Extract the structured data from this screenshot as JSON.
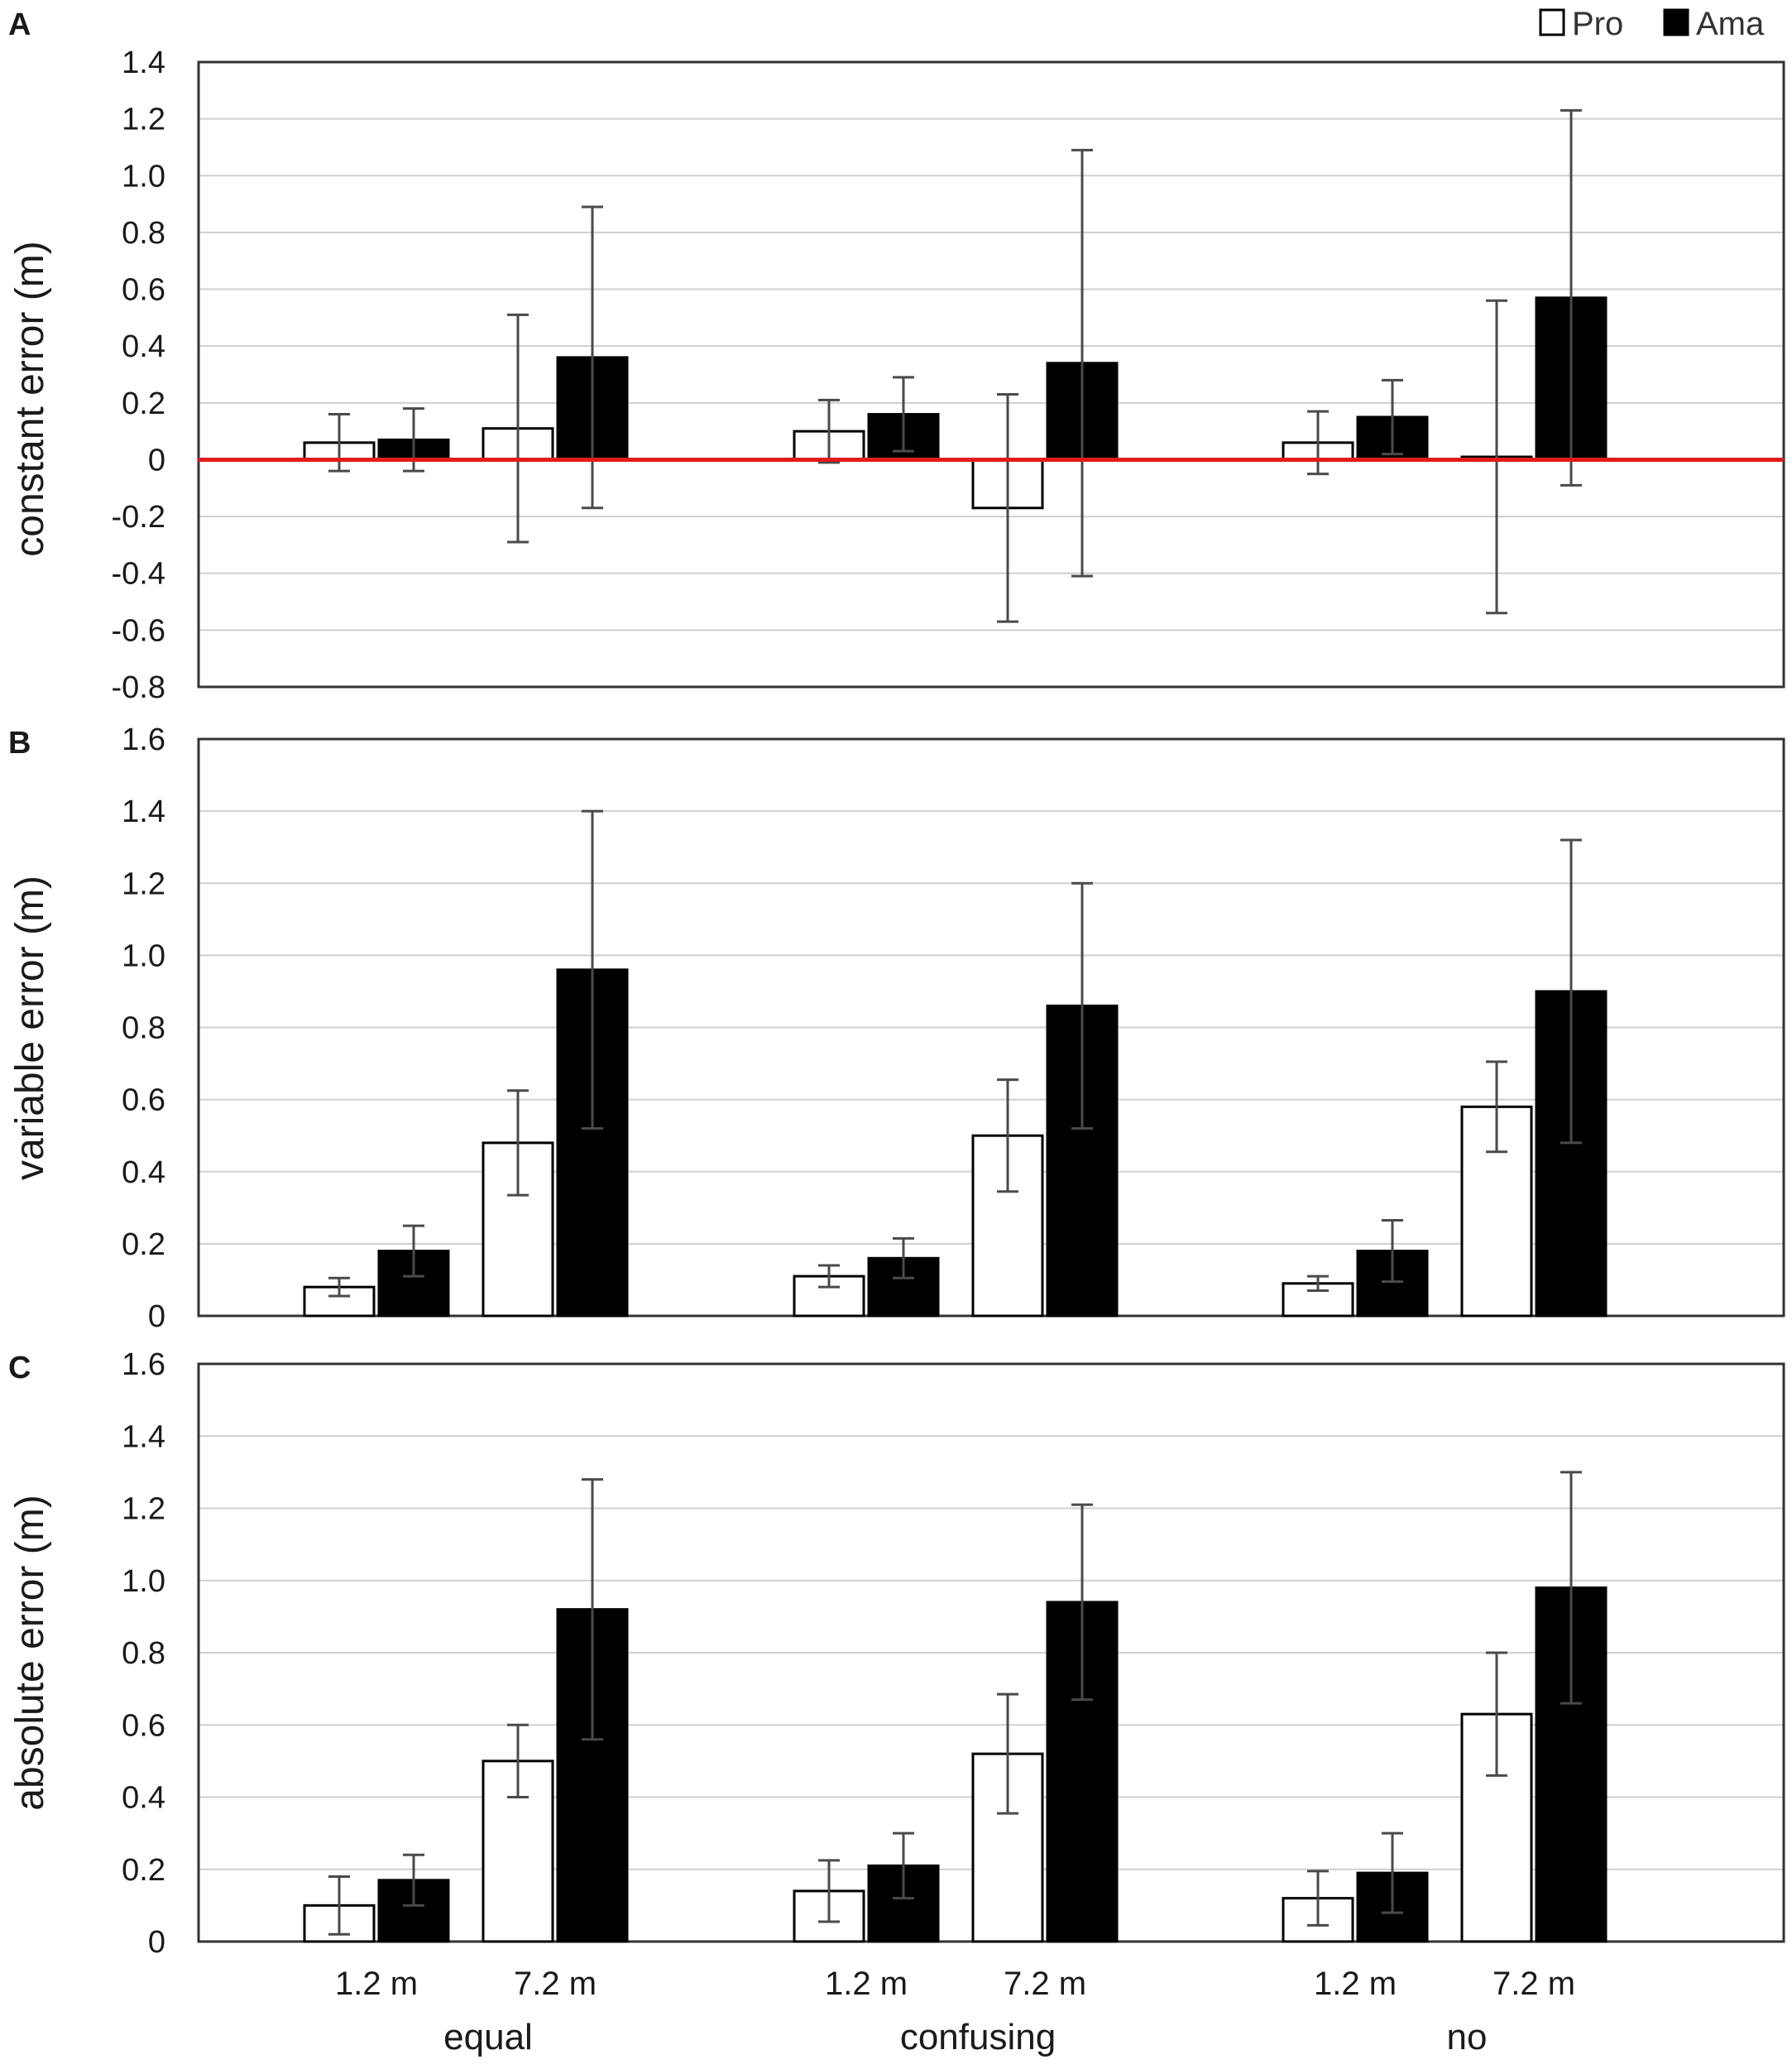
{
  "legend": {
    "items": [
      {
        "label": "Pro",
        "color": "#ffffff"
      },
      {
        "label": "Ama",
        "color": "#000000"
      }
    ]
  },
  "x_axis": {
    "distance_labels": [
      "1.2 m",
      "7.2 m"
    ],
    "group_labels": [
      "equal",
      "confusing",
      "no"
    ]
  },
  "colors": {
    "pro_fill": "#ffffff",
    "ama_fill": "#000000",
    "zero_line": "#e31b1b",
    "grid": "#cfcfcf",
    "error_bar": "#4a4a4a"
  },
  "chart_data": [
    {
      "panel": "A",
      "type": "bar",
      "ylabel": "constant error (m)",
      "ylim": [
        -0.8,
        1.4
      ],
      "yticks": [
        "1.4",
        "1.2",
        "1.0",
        "0.8",
        "0.6",
        "0.4",
        "0.2",
        "0",
        "-0.2",
        "-0.4",
        "-0.6",
        "-0.8"
      ],
      "grid": true,
      "reference_line": 0,
      "categories": [
        "equal 1.2 m",
        "equal 7.2 m",
        "confusing 1.2 m",
        "confusing 7.2 m",
        "no 1.2 m",
        "no 7.2 m"
      ],
      "series": [
        {
          "name": "Pro",
          "values": [
            0.06,
            0.11,
            0.1,
            -0.17,
            0.06,
            0.01
          ],
          "errors": [
            0.1,
            0.4,
            0.11,
            0.4,
            0.11,
            0.55
          ]
        },
        {
          "name": "Ama",
          "values": [
            0.07,
            0.36,
            0.16,
            0.34,
            0.15,
            0.57
          ],
          "errors": [
            0.11,
            0.53,
            0.13,
            0.75,
            0.13,
            0.66
          ]
        }
      ]
    },
    {
      "panel": "B",
      "type": "bar",
      "ylabel": "variable error (m)",
      "ylim": [
        0,
        1.6
      ],
      "yticks": [
        "1.6",
        "1.4",
        "1.2",
        "1.0",
        "0.8",
        "0.6",
        "0.4",
        "0.2",
        "0"
      ],
      "grid": true,
      "categories": [
        "equal 1.2 m",
        "equal 7.2 m",
        "confusing 1.2 m",
        "confusing 7.2 m",
        "no 1.2 m",
        "no 7.2 m"
      ],
      "series": [
        {
          "name": "Pro",
          "values": [
            0.08,
            0.48,
            0.11,
            0.5,
            0.09,
            0.58
          ],
          "errors": [
            0.025,
            0.145,
            0.03,
            0.155,
            0.02,
            0.125
          ]
        },
        {
          "name": "Ama",
          "values": [
            0.18,
            0.96,
            0.16,
            0.86,
            0.18,
            0.9
          ],
          "errors": [
            0.07,
            0.44,
            0.055,
            0.34,
            0.085,
            0.42
          ]
        }
      ]
    },
    {
      "panel": "C",
      "type": "bar",
      "ylabel": "absolute error (m)",
      "ylim": [
        0,
        1.6
      ],
      "yticks": [
        "1.6",
        "1.4",
        "1.2",
        "1.0",
        "0.8",
        "0.6",
        "0.4",
        "0.2",
        "0"
      ],
      "grid": true,
      "categories": [
        "equal 1.2 m",
        "equal 7.2 m",
        "confusing 1.2 m",
        "confusing 7.2 m",
        "no 1.2 m",
        "no 7.2 m"
      ],
      "series": [
        {
          "name": "Pro",
          "values": [
            0.1,
            0.5,
            0.14,
            0.52,
            0.12,
            0.63
          ],
          "errors": [
            0.08,
            0.1,
            0.085,
            0.165,
            0.075,
            0.17
          ]
        },
        {
          "name": "Ama",
          "values": [
            0.17,
            0.92,
            0.21,
            0.94,
            0.19,
            0.98
          ],
          "errors": [
            0.07,
            0.36,
            0.09,
            0.27,
            0.11,
            0.32
          ]
        }
      ]
    }
  ]
}
